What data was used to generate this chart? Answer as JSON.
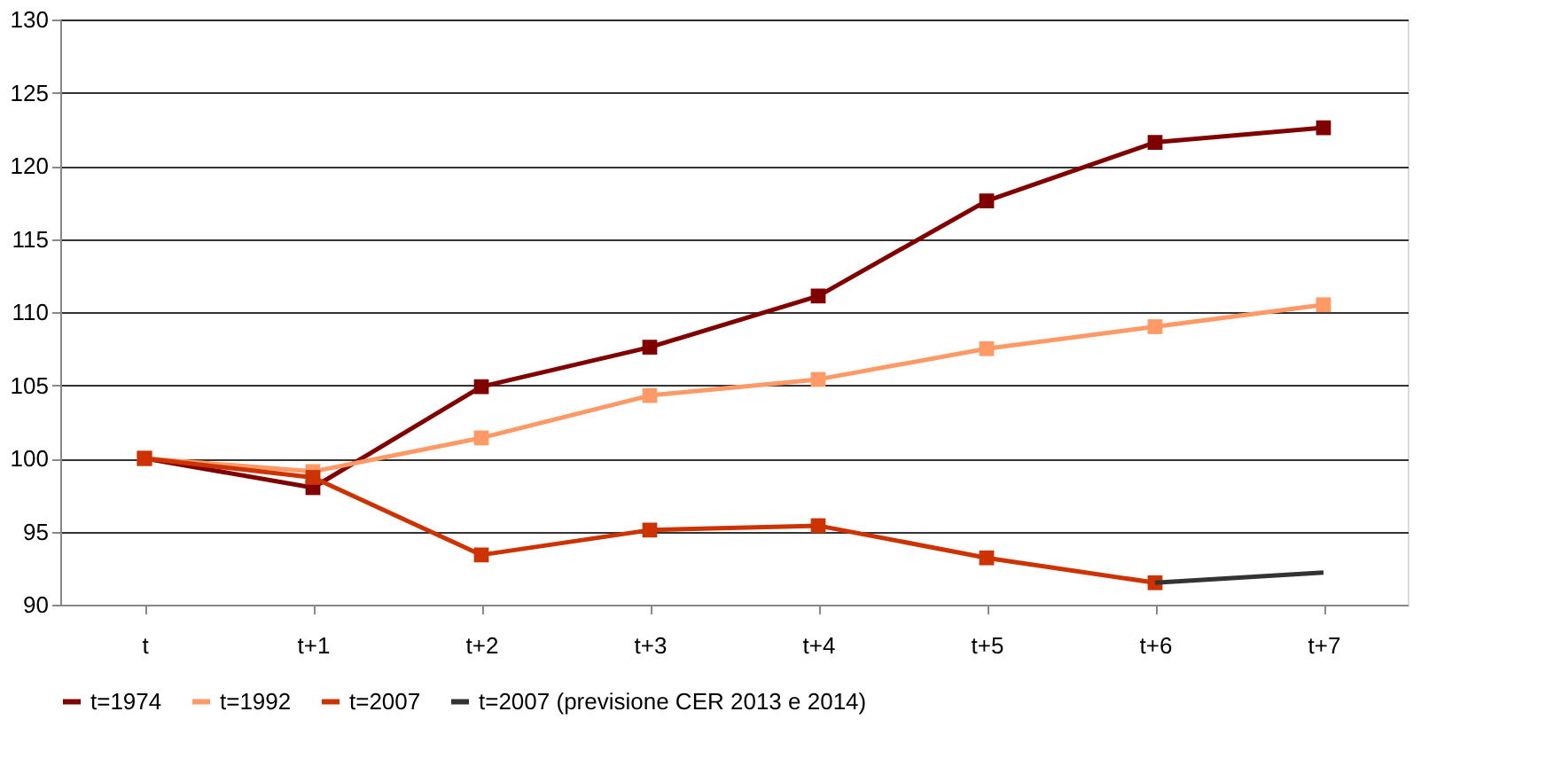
{
  "chart_data": {
    "type": "line",
    "categories": [
      "t",
      "t+1",
      "t+2",
      "t+3",
      "t+4",
      "t+5",
      "t+6",
      "t+7"
    ],
    "series": [
      {
        "name": "t=1974",
        "color": "#800000",
        "values": [
          100,
          98.0,
          104.9,
          107.6,
          111.1,
          117.6,
          121.6,
          122.6
        ]
      },
      {
        "name": "t=1992",
        "color": "#ff9966",
        "values": [
          100,
          99.1,
          101.4,
          104.3,
          105.4,
          107.5,
          109.0,
          110.5
        ]
      },
      {
        "name": "t=2007",
        "color": "#cc3300",
        "values": [
          100,
          98.7,
          93.4,
          95.1,
          95.4,
          93.2,
          91.5,
          null
        ]
      },
      {
        "name": "t=2007 (previsione CER 2013 e 2014)",
        "color": "#333333",
        "marker": "none",
        "values": [
          null,
          null,
          null,
          null,
          null,
          null,
          91.5,
          92.2
        ]
      }
    ],
    "ylim": [
      90,
      130
    ],
    "yticks": [
      90,
      95,
      100,
      105,
      110,
      115,
      120,
      125,
      130
    ],
    "grid": "y",
    "legend": "bottom",
    "marker": "square",
    "line_style": "solid"
  }
}
